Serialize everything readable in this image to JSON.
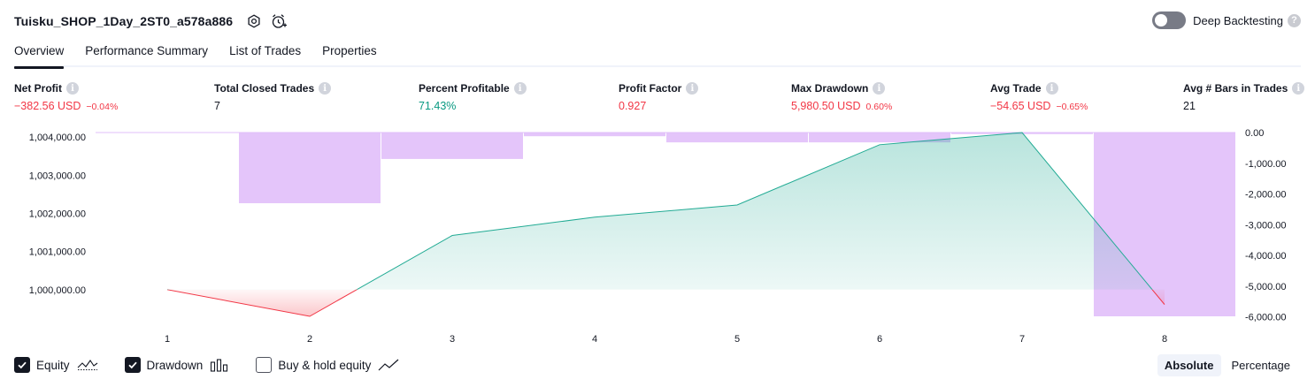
{
  "header": {
    "strategy_name": "Tuisku_SHOP_1Day_2ST0_a578a886",
    "settings_icon": "gear-icon",
    "alert_icon": "alarm-clock-icon",
    "deep_backtesting_label": "Deep Backtesting",
    "deep_backtesting_enabled": false
  },
  "tabs": [
    {
      "label": "Overview",
      "active": true
    },
    {
      "label": "Performance Summary",
      "active": false
    },
    {
      "label": "List of Trades",
      "active": false
    },
    {
      "label": "Properties",
      "active": false
    }
  ],
  "stats": {
    "net_profit": {
      "label": "Net Profit",
      "value": "−382.56 USD",
      "pct": "−0.04%"
    },
    "total_closed_trades": {
      "label": "Total Closed Trades",
      "value": "7"
    },
    "percent_profitable": {
      "label": "Percent Profitable",
      "value": "71.43%"
    },
    "profit_factor": {
      "label": "Profit Factor",
      "value": "0.927"
    },
    "max_drawdown": {
      "label": "Max Drawdown",
      "value": "5,980.50 USD",
      "pct": "0.60%"
    },
    "avg_trade": {
      "label": "Avg Trade",
      "value": "−54.65 USD",
      "pct": "−0.65%"
    },
    "avg_bars": {
      "label": "Avg # Bars in Trades",
      "value": "21"
    }
  },
  "chart_data": {
    "type": "line",
    "x": [
      1,
      2,
      3,
      4,
      5,
      6,
      7,
      8
    ],
    "x_tick_labels": [
      "1",
      "2",
      "3",
      "4",
      "5",
      "6",
      "7",
      "8"
    ],
    "series": [
      {
        "name": "Equity",
        "type": "area",
        "values": [
          1000000,
          999300,
          1001420,
          1001900,
          1002220,
          1003800,
          1004120,
          999610
        ]
      },
      {
        "name": "Drawdown",
        "type": "bar",
        "values": [
          0,
          -2300,
          -860,
          -120,
          -320,
          -320,
          -50,
          -5980
        ]
      }
    ],
    "left_axis": {
      "ylim": [
        999300,
        1004120
      ],
      "ticks": [
        1000000,
        1001000,
        1002000,
        1003000,
        1004000
      ],
      "tick_labels": [
        "1,000,000.00",
        "1,001,000.00",
        "1,002,000.00",
        "1,003,000.00",
        "1,004,000.00"
      ]
    },
    "right_axis": {
      "ylim": [
        -5980,
        0
      ],
      "ticks": [
        0,
        -1000,
        -2000,
        -3000,
        -4000,
        -5000,
        -6000
      ],
      "tick_labels": [
        "0.00",
        "-1,000.00",
        "-2,000.00",
        "-3,000.00",
        "-4,000.00",
        "-5,000.00",
        "-6,000.00"
      ]
    },
    "colors": {
      "equity_up": "#22ab94",
      "equity_down": "#f23645",
      "drawdown": "#e1bffa"
    }
  },
  "legend": {
    "equity": {
      "label": "Equity",
      "checked": true
    },
    "drawdown": {
      "label": "Drawdown",
      "checked": true
    },
    "buy_hold": {
      "label": "Buy & hold equity",
      "checked": false
    }
  },
  "mode": {
    "absolute": "Absolute",
    "percentage": "Percentage",
    "selected": "Absolute"
  }
}
